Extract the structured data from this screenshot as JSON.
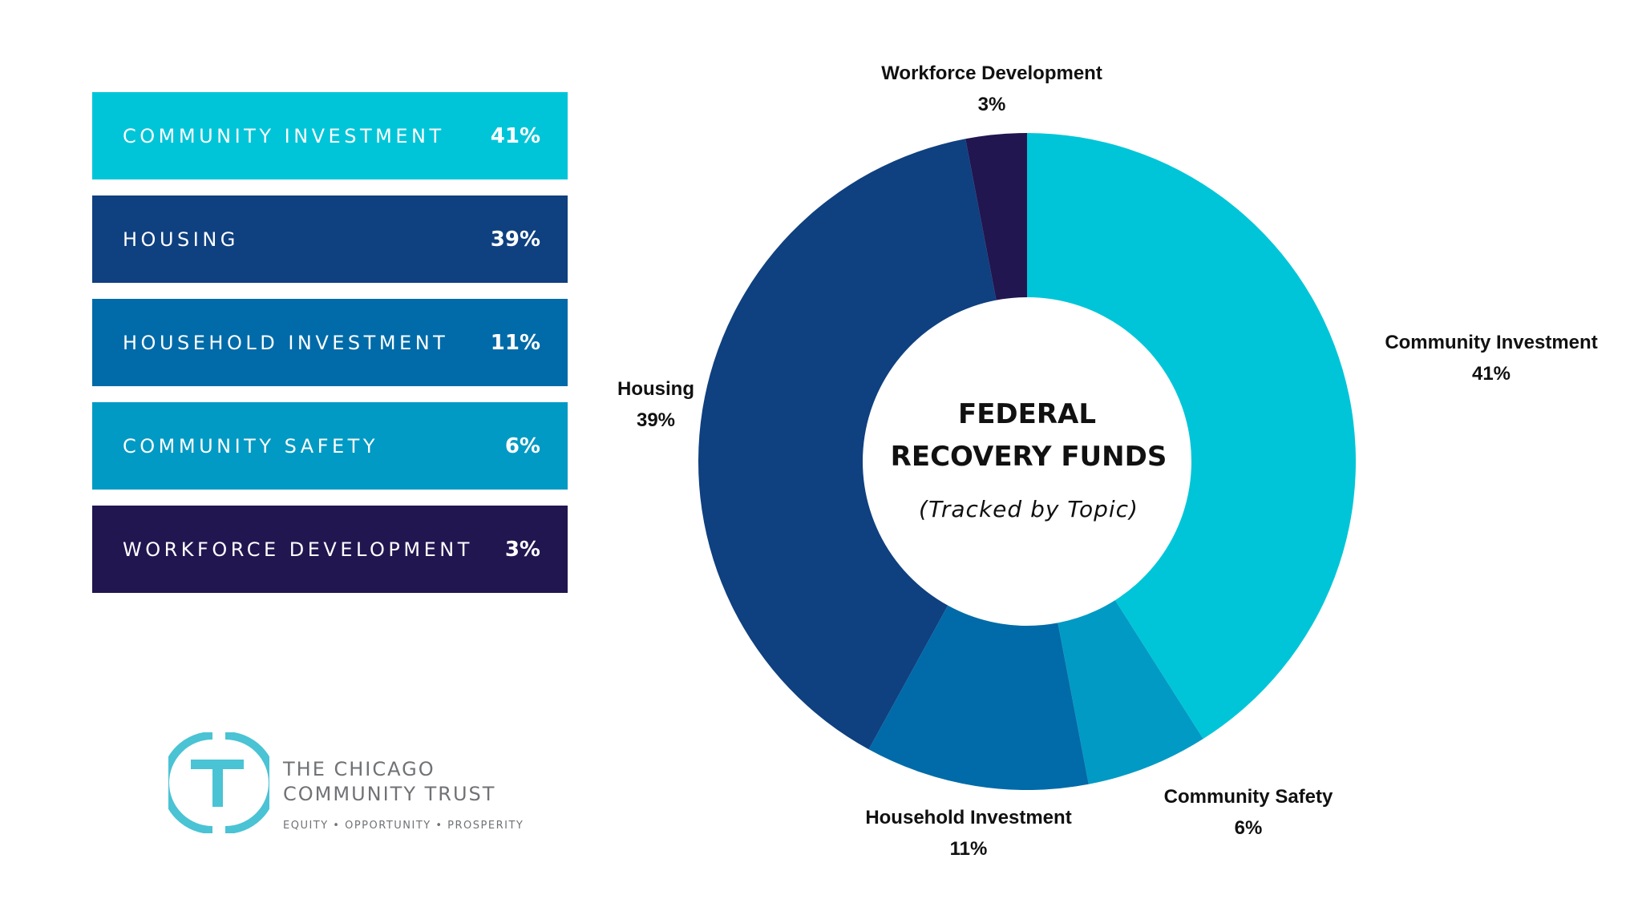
{
  "chart_data": {
    "type": "pie",
    "donut": true,
    "title": "FEDERAL RECOVERY FUNDS",
    "subtitle": "(Tracked by Topic)",
    "categories": [
      "Community Investment",
      "Community Safety",
      "Household Investment",
      "Housing",
      "Workforce Development"
    ],
    "values": [
      41,
      6,
      11,
      39,
      3
    ],
    "unit": "%",
    "colors": [
      "#00c5d8",
      "#009ac4",
      "#006ba8",
      "#0f4080",
      "#211650"
    ],
    "data_labels": [
      "41%",
      "6%",
      "11%",
      "39%",
      "3%"
    ]
  },
  "legend": [
    {
      "label": "COMMUNITY INVESTMENT",
      "value": "41%",
      "color": "#00c5d8"
    },
    {
      "label": "HOUSING",
      "value": "39%",
      "color": "#0f4080"
    },
    {
      "label": "HOUSEHOLD INVESTMENT",
      "value": "11%",
      "color": "#006ba8"
    },
    {
      "label": "COMMUNITY SAFETY",
      "value": "6%",
      "color": "#009ac4"
    },
    {
      "label": "WORKFORCE DEVELOPMENT",
      "value": "3%",
      "color": "#211650"
    }
  ],
  "center": {
    "line1": "FEDERAL",
    "line2": "RECOVERY FUNDS",
    "sub": "(Tracked by Topic)"
  },
  "logo": {
    "line1": "THE CHICAGO",
    "line2": "COMMUNITY TRUST",
    "tagline": "EQUITY • OPPORTUNITY • PROSPERITY",
    "color": "#4ac3d4"
  }
}
